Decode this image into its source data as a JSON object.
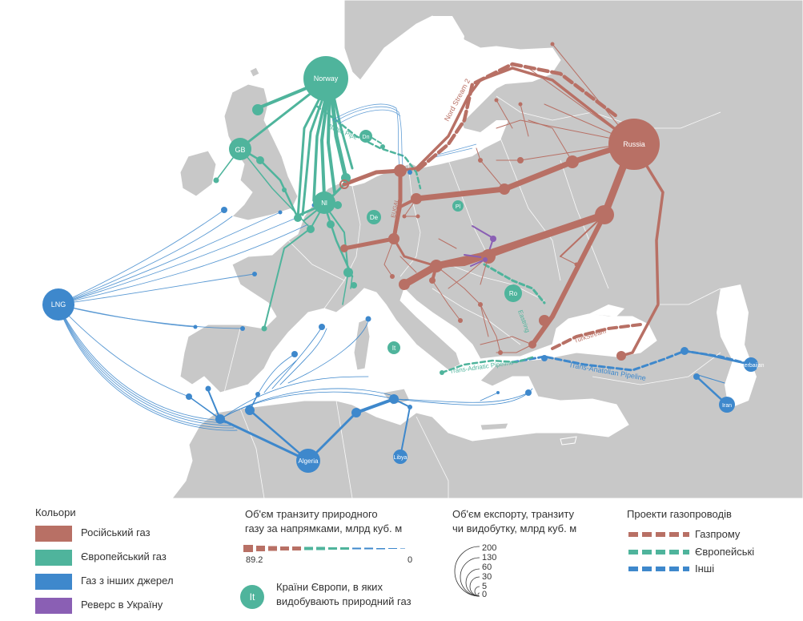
{
  "colors": {
    "sea": "#ffffff",
    "land": "#c8c8c8",
    "land_dark": "#b4b4b4",
    "russian_gas": "#b87065",
    "european_gas": "#4fb49c",
    "other_gas": "#3e88cc",
    "reverse_ukraine": "#8a5fb4"
  },
  "map_labels": {
    "norway": "Norway",
    "gb": "GB",
    "dn": "Dn",
    "nl": "Nl",
    "de": "De",
    "pl": "Pl",
    "ro": "Ro",
    "it": "It",
    "russia": "Russia",
    "lng": "LNG",
    "algeria": "Algeria",
    "libya": "Libya",
    "iran": "Iran",
    "azerbaijan": "Azerbaijan"
  },
  "pipeline_labels": {
    "nord_stream_2": "Nord Stream 2",
    "baltic_pipe": "Baltic Pipe",
    "eugal": "EUGAL",
    "eastring": "Eastring",
    "turkstream": "TurkStream",
    "tap": "Trans-Adriatic Pipeline",
    "tanap": "Trans-Anatolian Pipeline"
  },
  "legend": {
    "colors_title": "Кольори",
    "color_items": [
      {
        "label": "Російський газ",
        "color": "#b87065"
      },
      {
        "label": "Європейський газ",
        "color": "#4fb49c"
      },
      {
        "label": "Газ з інших джерел",
        "color": "#3e88cc"
      },
      {
        "label": "Реверс в Україну",
        "color": "#8a5fb4"
      }
    ],
    "transit_title_line1": "Об'єм транзиту природного",
    "transit_title_line2": "газу за напрямками, млрд куб. м",
    "transit_max": "89.2",
    "transit_min": "0",
    "producer_badge": "It",
    "producer_line1": "Країни Європи, в яких",
    "producer_line2": "видобувають природний газ",
    "export_title_line1": "Об'єм експорту, транзиту",
    "export_title_line2": "чи видобутку,  млрд куб. м",
    "export_scale": [
      "200",
      "130",
      "60",
      "30",
      "5",
      "0"
    ],
    "projects_title": "Проекти газопроводів",
    "project_items": [
      {
        "label": "Газпрому",
        "color": "#b87065"
      },
      {
        "label": "Європейські",
        "color": "#4fb49c"
      },
      {
        "label": "Інші",
        "color": "#3e88cc"
      }
    ]
  }
}
